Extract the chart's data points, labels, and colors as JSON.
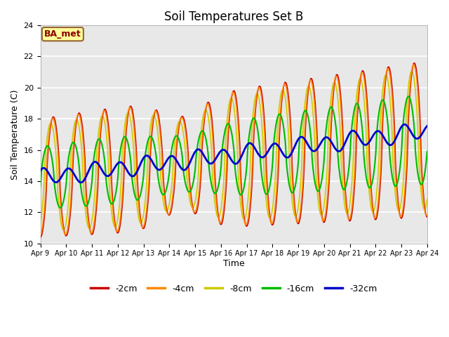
{
  "title": "Soil Temperatures Set B",
  "xlabel": "Time",
  "ylabel": "Soil Temperature (C)",
  "ylim": [
    10,
    24
  ],
  "background_color": "#ffffff",
  "plot_bg_color": "#e8e8e8",
  "grid_color": "#ffffff",
  "annotation_text": "BA_met",
  "annotation_bg": "#ffff99",
  "annotation_border": "#996633",
  "annotation_text_color": "#8b0000",
  "series": {
    "-2cm": {
      "color": "#cc0000",
      "lw": 1.2
    },
    "-4cm": {
      "color": "#ff8800",
      "lw": 1.2
    },
    "-8cm": {
      "color": "#cccc00",
      "lw": 1.2
    },
    "-16cm": {
      "color": "#00bb00",
      "lw": 1.5
    },
    "-32cm": {
      "color": "#0000cc",
      "lw": 2.0
    }
  },
  "xtick_labels": [
    "Apr 9",
    "Apr 10",
    "Apr 11",
    "Apr 12",
    "Apr 13",
    "Apr 14",
    "Apr 15",
    "Apr 16",
    "Apr 17",
    "Apr 18",
    "Apr 19",
    "Apr 20",
    "Apr 21",
    "Apr 22",
    "Apr 23",
    "Apr 24"
  ],
  "xtick_positions": [
    0,
    1,
    2,
    3,
    4,
    5,
    6,
    7,
    8,
    9,
    10,
    11,
    12,
    13,
    14,
    15
  ]
}
